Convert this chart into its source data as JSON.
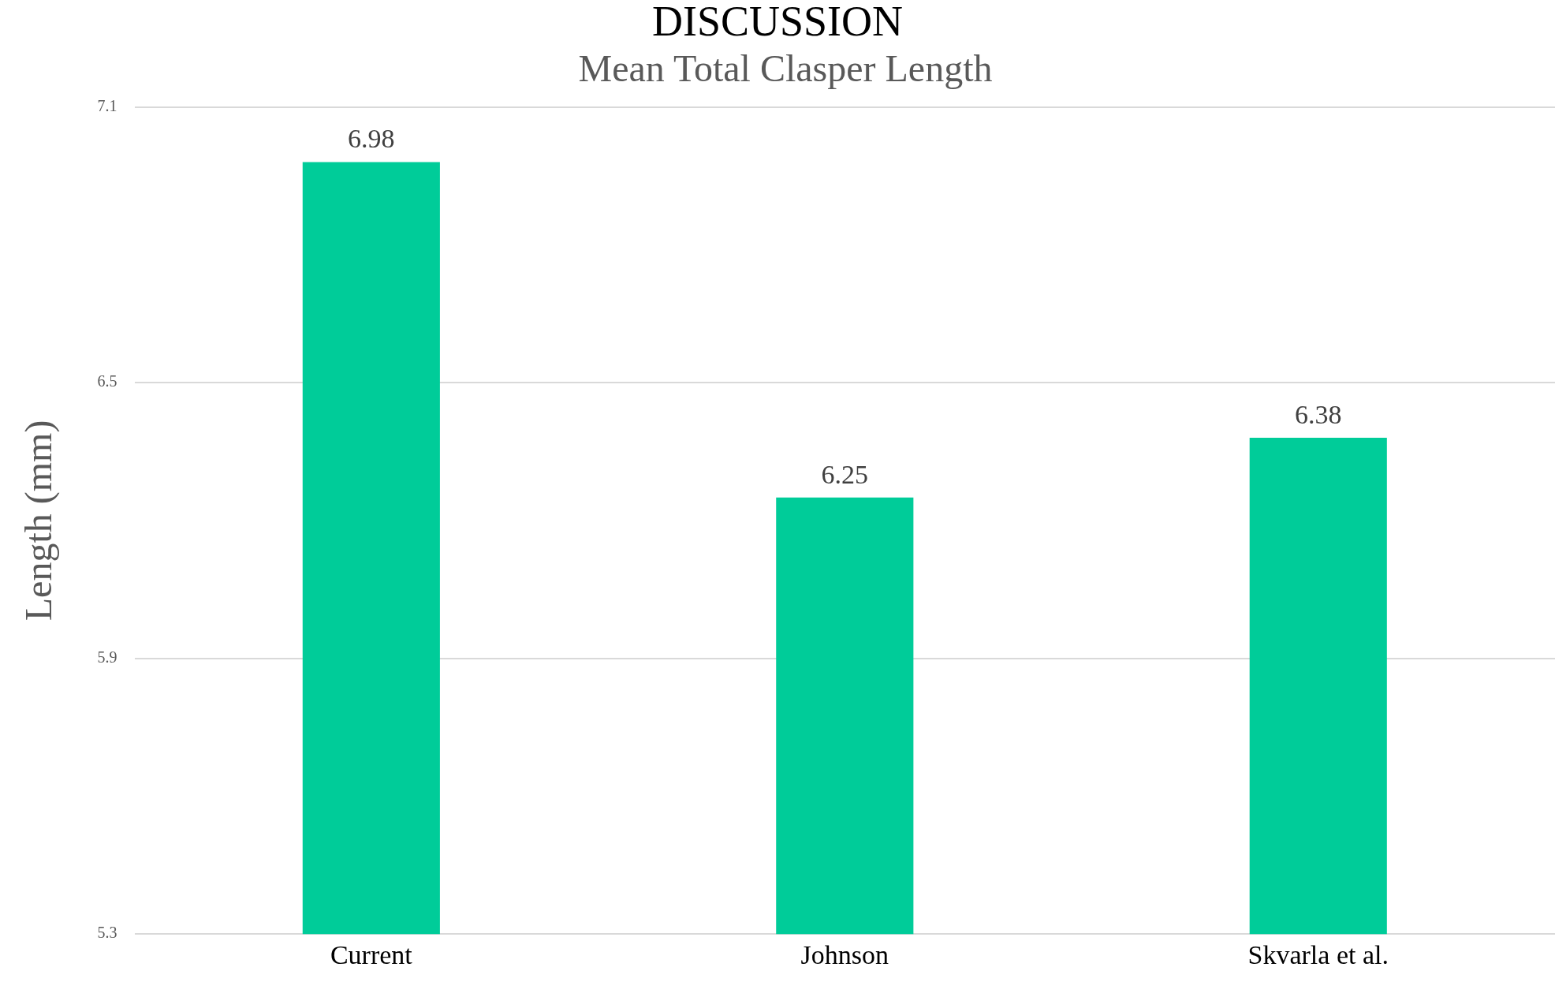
{
  "chart_data": {
    "type": "bar",
    "title": "Mean Total Clasper Length",
    "ylabel": "Length (mm)",
    "annotations": [
      "DISCUSSION"
    ],
    "categories": [
      "Current",
      "Johnson",
      "Skvarla et al."
    ],
    "values": [
      6.98,
      6.25,
      6.38
    ],
    "color": "#00cc99",
    "ylim": [
      5.3,
      7.1
    ],
    "yticks": [
      5.3,
      5.9,
      6.5,
      7.1
    ],
    "grid": "y",
    "data_labels": true
  }
}
